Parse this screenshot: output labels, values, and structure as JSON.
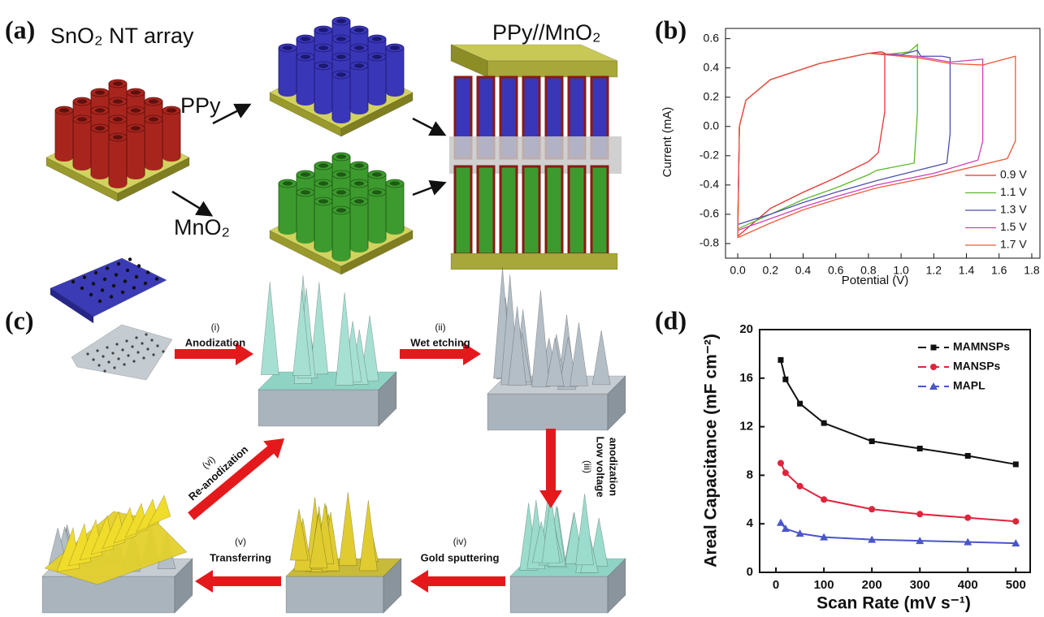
{
  "panel_a": {
    "label": "(a)",
    "left_title": "SnO₂ NT array",
    "ppy": "PPy",
    "mno2": "MnO₂",
    "right_title": "PPy//MnO₂"
  },
  "panel_b": {
    "label": "(b)"
  },
  "panel_c": {
    "label": "(c)",
    "steps": [
      {
        "number": "(i)",
        "name": [
          "Anodization"
        ]
      },
      {
        "number": "(ii)",
        "name": [
          "Wet etching"
        ]
      },
      {
        "number": "(iii)",
        "name": [
          "Low voltage",
          "anodization"
        ]
      },
      {
        "number": "(iv)",
        "name": [
          "Gold sputtering"
        ]
      },
      {
        "number": "(v)",
        "name": [
          "Transferring"
        ]
      },
      {
        "number": "(vi)",
        "name": [
          "Re-anodization"
        ]
      }
    ]
  },
  "panel_d": {
    "label": "(d)"
  },
  "chart_data": [
    {
      "type": "line",
      "x_label": "Potential (V)",
      "y_label": "Current (mA)",
      "xlim": [
        -0.075,
        1.85
      ],
      "ylim": [
        -0.9,
        0.67
      ],
      "xticks": [
        {
          "value": 0,
          "label": "0.0"
        },
        0.2,
        0.4,
        0.6,
        0.8,
        {
          "value": 1,
          "label": "1.0"
        },
        1.2,
        1.4,
        1.6,
        1.8
      ],
      "yticks": [
        -0.8,
        -0.6,
        -0.4,
        -0.2,
        {
          "value": 0,
          "label": "0.0"
        },
        0.2,
        0.4,
        0.6
      ],
      "legend": "lower right",
      "series": [
        {
          "name": "0.9 V",
          "color": "#e8322f",
          "x": [
            0,
            0.01,
            0.05,
            0.2,
            0.5,
            0.8,
            0.88,
            0.9,
            0.9,
            0.86,
            0.8,
            0.6,
            0.4,
            0.2,
            0
          ],
          "values": [
            -0.75,
            0,
            0.18,
            0.32,
            0.43,
            0.5,
            0.51,
            0.5,
            0.1,
            -0.18,
            -0.24,
            -0.35,
            -0.45,
            -0.56,
            -0.75
          ]
        },
        {
          "name": "1.1 V",
          "color": "#5cb82e",
          "x": [
            0,
            0.01,
            0.05,
            0.2,
            0.5,
            0.8,
            0.9,
            1.05,
            1.1,
            1.1,
            1.1,
            1.08,
            0.85,
            0.8,
            0.6,
            0.4,
            0.2,
            0
          ],
          "values": [
            -0.7,
            0,
            0.18,
            0.32,
            0.43,
            0.5,
            0.49,
            0.51,
            0.56,
            0.5,
            0.1,
            -0.25,
            -0.3,
            -0.33,
            -0.42,
            -0.5,
            -0.6,
            -0.7
          ]
        },
        {
          "name": "1.3 V",
          "color": "#4a4fb3",
          "x": [
            0,
            0.01,
            0.05,
            0.2,
            0.5,
            0.8,
            1.0,
            1.1,
            1.12,
            1.25,
            1.3,
            1.3,
            1.28,
            1.1,
            0.85,
            0.6,
            0.4,
            0.2,
            0
          ],
          "values": [
            -0.67,
            0,
            0.18,
            0.32,
            0.43,
            0.5,
            0.49,
            0.52,
            0.48,
            0.48,
            0.47,
            -0.05,
            -0.25,
            -0.3,
            -0.37,
            -0.45,
            -0.52,
            -0.6,
            -0.67
          ]
        },
        {
          "name": "1.5 V",
          "color": "#d23fb8",
          "x": [
            0,
            0.01,
            0.05,
            0.2,
            0.5,
            0.8,
            1.1,
            1.3,
            1.5,
            1.5,
            1.47,
            1.2,
            0.85,
            0.6,
            0.4,
            0.2,
            0
          ],
          "values": [
            -0.71,
            0,
            0.18,
            0.32,
            0.43,
            0.5,
            0.48,
            0.44,
            0.46,
            -0.1,
            -0.23,
            -0.32,
            -0.4,
            -0.48,
            -0.55,
            -0.63,
            -0.71
          ]
        },
        {
          "name": "1.7 V",
          "color": "#f05a3c",
          "x": [
            0,
            0.01,
            0.05,
            0.2,
            0.5,
            0.8,
            1.1,
            1.3,
            1.5,
            1.7,
            1.7,
            1.65,
            1.2,
            0.85,
            0.6,
            0.4,
            0.2,
            0
          ],
          "values": [
            -0.76,
            0,
            0.18,
            0.32,
            0.43,
            0.5,
            0.47,
            0.43,
            0.42,
            0.48,
            -0.1,
            -0.22,
            -0.34,
            -0.42,
            -0.5,
            -0.57,
            -0.66,
            -0.76
          ]
        }
      ]
    },
    {
      "type": "line",
      "x_label": "Scan Rate (mV s⁻¹)",
      "y_label": "Areal Capacitance (mF cm⁻²)",
      "x": [
        10,
        20,
        50,
        100,
        200,
        300,
        400,
        500
      ],
      "xlim": [
        -34,
        530
      ],
      "ylim": [
        0,
        20
      ],
      "xticks": [
        0,
        100,
        200,
        300,
        400,
        500
      ],
      "yticks": [
        0,
        4,
        8,
        12,
        16,
        20
      ],
      "legend": "upper right",
      "series": [
        {
          "name": "MAMNSPs",
          "color": "#111111",
          "marker": "square",
          "values": [
            17.5,
            15.9,
            13.9,
            12.3,
            10.8,
            10.2,
            9.6,
            8.9
          ]
        },
        {
          "name": "MANSPs",
          "color": "#e0243c",
          "marker": "circle",
          "values": [
            9.0,
            8.2,
            7.1,
            6.0,
            5.2,
            4.8,
            4.5,
            4.2
          ]
        },
        {
          "name": "MAPL",
          "color": "#4a56c8",
          "marker": "triangle",
          "values": [
            4.1,
            3.6,
            3.2,
            2.9,
            2.7,
            2.6,
            2.5,
            2.4
          ]
        }
      ]
    }
  ]
}
